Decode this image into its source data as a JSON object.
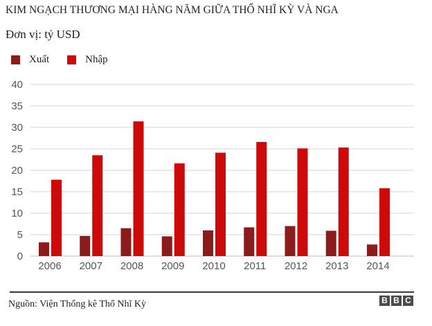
{
  "header": {
    "title": "KIM NGẠCH THƯƠNG MẠI HÀNG NĂM GIỮA THỔ NHĨ KỲ VÀ NGA",
    "unit": "Đơn vị: tỷ USD"
  },
  "footer": {
    "source": "Nguồn: Viện Thống kê Thổ Nhĩ Kỳ",
    "logo": [
      "B",
      "B",
      "C"
    ]
  },
  "colors": {
    "export": "#8c1c1c",
    "import": "#cc0a0a"
  },
  "chart_data": {
    "type": "bar",
    "title": "KIM NGẠCH THƯƠNG MẠI HÀNG NĂM GIỮA THỔ NHĨ KỲ VÀ NGA",
    "ylabel": "Đơn vị: tỷ USD",
    "xlabel": "",
    "ylim": [
      0,
      40
    ],
    "yticks": [
      0,
      5,
      10,
      15,
      20,
      25,
      30,
      35,
      40
    ],
    "grid": true,
    "legend_position": "top-left",
    "categories": [
      "2006",
      "2007",
      "2008",
      "2009",
      "2010",
      "2011",
      "2012",
      "2013",
      "2014"
    ],
    "series": [
      {
        "name": "Xuất",
        "color": "#8c1c1c",
        "values": [
          3.2,
          4.7,
          6.5,
          4.6,
          6.0,
          6.7,
          7.0,
          5.9,
          2.7
        ]
      },
      {
        "name": "Nhập",
        "color": "#cc0a0a",
        "values": [
          17.8,
          23.5,
          31.4,
          21.6,
          24.1,
          26.6,
          25.1,
          25.3,
          15.8
        ]
      }
    ]
  }
}
